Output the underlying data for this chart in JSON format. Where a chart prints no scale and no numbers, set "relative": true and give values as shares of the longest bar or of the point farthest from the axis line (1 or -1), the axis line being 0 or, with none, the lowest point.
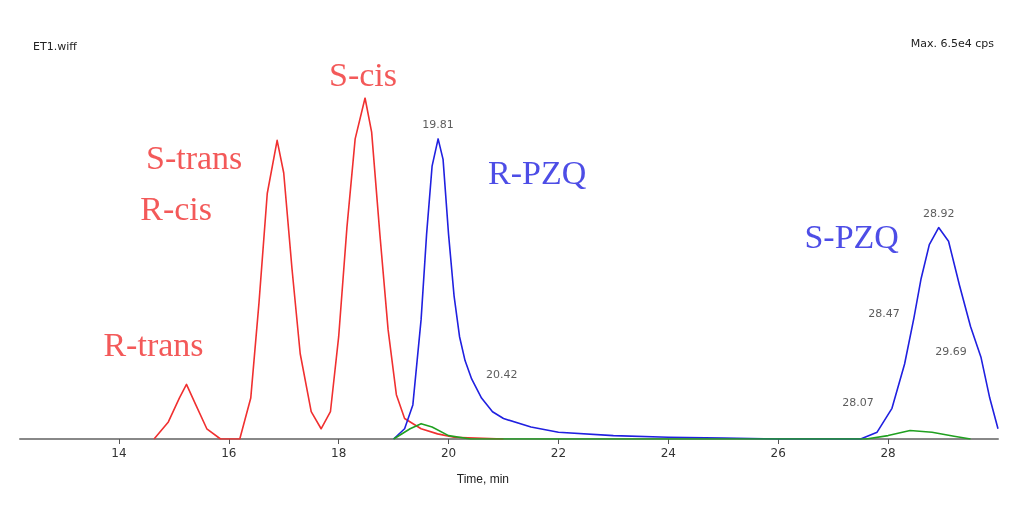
{
  "chart_data": {
    "type": "line",
    "title": "ET1.wiff",
    "xlabel": "Time, min",
    "relative": true,
    "xlim": [
      12.2,
      30
    ],
    "xticks": [
      14,
      16,
      18,
      20,
      22,
      24,
      26,
      28
    ],
    "grid": false,
    "marker": "none",
    "line_style": "solid",
    "series": [
      {
        "color": "#f03030",
        "x": [
          14.64,
          14.9,
          15.1,
          15.23,
          15.4,
          15.6,
          15.85,
          16.2,
          16.4,
          16.55,
          16.7,
          16.88,
          17.0,
          17.15,
          17.3,
          17.5,
          17.68,
          17.85,
          18.0,
          18.15,
          18.3,
          18.48,
          18.6,
          18.75,
          18.9,
          19.05,
          19.2,
          19.5,
          19.8,
          20.1,
          21.0
        ],
        "values": [
          0,
          0.05,
          0.12,
          0.16,
          0.1,
          0.03,
          0,
          0,
          0.12,
          0.4,
          0.72,
          0.876,
          0.78,
          0.5,
          0.25,
          0.08,
          0.03,
          0.08,
          0.3,
          0.62,
          0.88,
          1.0,
          0.9,
          0.6,
          0.32,
          0.13,
          0.06,
          0.03,
          0.015,
          0.005,
          0
        ]
      },
      {
        "color": "#2020e0",
        "x": [
          19.0,
          19.2,
          19.35,
          19.5,
          19.6,
          19.7,
          19.81,
          19.9,
          20.0,
          20.1,
          20.2,
          20.3,
          20.42,
          20.6,
          20.8,
          21.0,
          21.5,
          22,
          23,
          24,
          25,
          26,
          27.5,
          27.8,
          28.07,
          28.3,
          28.47,
          28.6,
          28.75,
          28.92,
          29.1,
          29.3,
          29.5,
          29.69,
          29.85,
          30.0
        ],
        "values": [
          0,
          0.03,
          0.1,
          0.35,
          0.6,
          0.8,
          0.88,
          0.82,
          0.6,
          0.42,
          0.3,
          0.23,
          0.176,
          0.12,
          0.08,
          0.06,
          0.035,
          0.02,
          0.01,
          0.005,
          0.003,
          0,
          0,
          0.02,
          0.09,
          0.22,
          0.355,
          0.47,
          0.57,
          0.62,
          0.58,
          0.45,
          0.33,
          0.24,
          0.12,
          0.03
        ]
      },
      {
        "color": "#20a020",
        "x": [
          19.0,
          19.3,
          19.5,
          19.7,
          20.0,
          20.4,
          27.6,
          28.0,
          28.4,
          28.8,
          29.2,
          29.5
        ],
        "values": [
          0,
          0.03,
          0.045,
          0.035,
          0.01,
          0,
          0,
          0.01,
          0.025,
          0.02,
          0.008,
          0
        ]
      }
    ],
    "annotations": [
      {
        "text": "R-trans",
        "x": 15.23,
        "y": 0.16
      },
      {
        "text": "S-trans",
        "x": 16.88,
        "y": 0.876
      },
      {
        "text": "R-cis",
        "x": 16.88,
        "y": 0.876
      },
      {
        "text": "S-cis",
        "x": 18.48,
        "y": 1.0
      },
      {
        "text": "R-PZQ",
        "x": 19.81,
        "y": 0.88
      },
      {
        "text": "S-PZQ",
        "x": 28.92,
        "y": 0.62
      },
      {
        "text": "19.81",
        "x": 19.81,
        "y": 0.88
      },
      {
        "text": "20.42",
        "x": 20.42,
        "y": 0.176
      },
      {
        "text": "28.92",
        "x": 28.92,
        "y": 0.62
      },
      {
        "text": "28.47",
        "x": 28.47,
        "y": 0.355
      },
      {
        "text": "28.07",
        "x": 28.07,
        "y": 0.09
      },
      {
        "text": "29.69",
        "x": 29.69,
        "y": 0.24
      },
      "Max. 6.5e4 cps"
    ]
  }
}
